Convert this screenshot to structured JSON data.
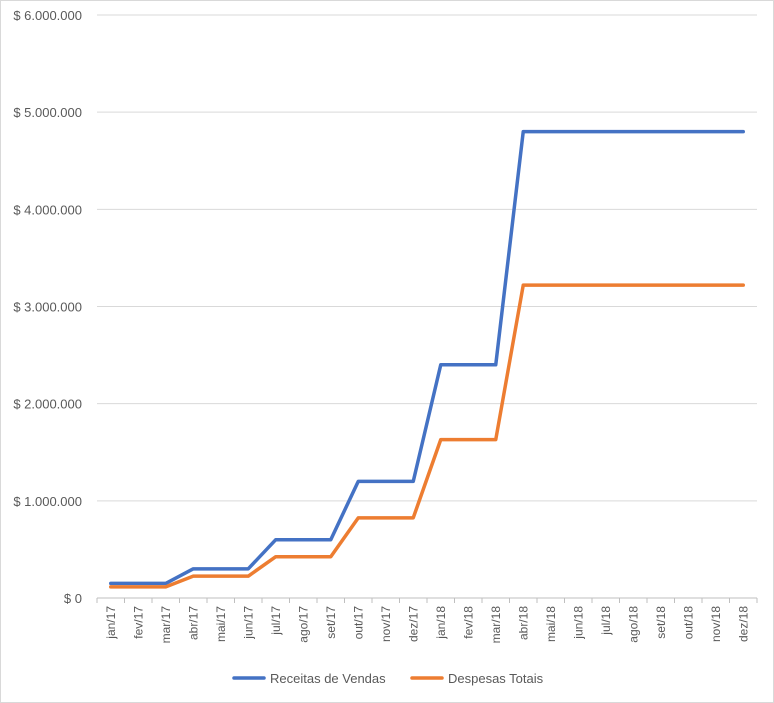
{
  "chart_data": {
    "type": "line",
    "categories": [
      "jan/17",
      "fev/17",
      "mar/17",
      "abr/17",
      "mai/17",
      "jun/17",
      "jul/17",
      "ago/17",
      "set/17",
      "out/17",
      "nov/17",
      "dez/17",
      "jan/18",
      "fev/18",
      "mar/18",
      "abr/18",
      "mai/18",
      "jun/18",
      "jul/18",
      "ago/18",
      "set/18",
      "out/18",
      "nov/18",
      "dez/18"
    ],
    "series": [
      {
        "name": "Receitas de Vendas",
        "color": "#4472c4",
        "values": [
          150000,
          150000,
          150000,
          300000,
          300000,
          300000,
          600000,
          600000,
          600000,
          1200000,
          1200000,
          1200000,
          2400000,
          2400000,
          2400000,
          4800000,
          4800000,
          4800000,
          4800000,
          4800000,
          4800000,
          4800000,
          4800000,
          4800000
        ]
      },
      {
        "name": "Despesas Totais",
        "color": "#ed7d31",
        "values": [
          115000,
          115000,
          115000,
          225000,
          225000,
          225000,
          425000,
          425000,
          425000,
          825000,
          825000,
          825000,
          1630000,
          1630000,
          1630000,
          3220000,
          3220000,
          3220000,
          3220000,
          3220000,
          3220000,
          3220000,
          3220000,
          3220000
        ]
      }
    ],
    "ylim": [
      0,
      6000000
    ],
    "yticks": [
      0,
      1000000,
      2000000,
      3000000,
      4000000,
      5000000,
      6000000
    ],
    "ytick_labels": [
      "$ 0",
      "$ 1.000.000",
      "$ 2.000.000",
      "$ 3.000.000",
      "$ 4.000.000",
      "$ 5.000.000",
      "$ 6.000.000"
    ],
    "grid": true,
    "legend_position": "bottom",
    "title": "",
    "xlabel": "",
    "ylabel": ""
  }
}
